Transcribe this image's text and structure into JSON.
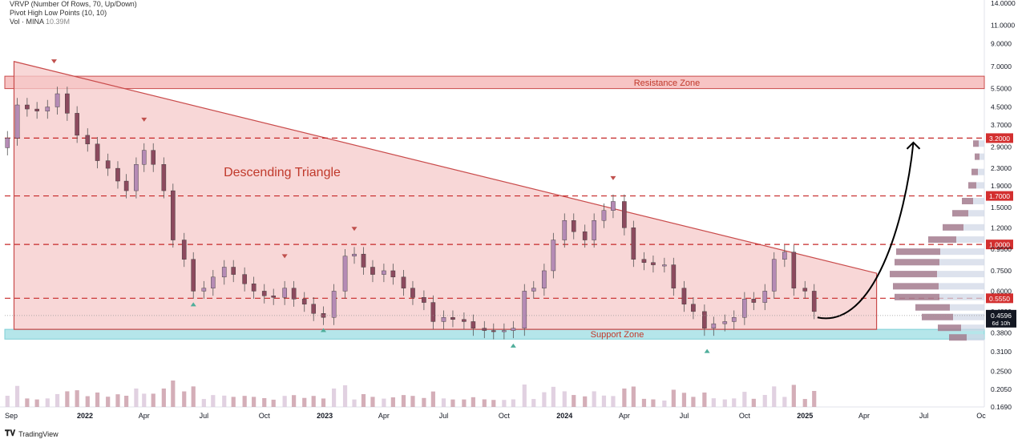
{
  "legend": {
    "line1": "VRVP (Number Of Rows, 70, Up/Down)",
    "line2": "Pivot High Low Points (10, 10)",
    "line3_label": "Vol · MINA",
    "line3_value": "10.39M"
  },
  "footer": {
    "brand": "TradingView"
  },
  "colors": {
    "up": "#b58bb5",
    "down": "#8c4a5e",
    "triangle_fill": "#f6c9c9",
    "triangle_stroke": "#c94b4b",
    "resistance_fill": "#f7c4c4",
    "support_fill": "#b5e6ea",
    "dashed": "#c62828",
    "label_bg": "#d32f2f",
    "price_bg": "#131722",
    "pivot_down": "#c0504d",
    "pivot_up": "#4fae9b"
  },
  "chart_data": {
    "type": "candlestick",
    "title": "",
    "annotations": {
      "pattern_label": "Descending Triangle",
      "resistance_label": "Resistance Zone",
      "support_label": "Support Zone",
      "current_price": "0.4596",
      "countdown": "6d 10h"
    },
    "price_axis_ticks": [
      "14.0000",
      "11.0000",
      "9.0000",
      "7.0000",
      "5.5000",
      "4.5000",
      "3.7000",
      "2.9000",
      "2.3000",
      "1.9000",
      "1.5000",
      "1.2000",
      "0.9500",
      "0.7500",
      "0.6000",
      "0.4800",
      "0.3800",
      "0.3100",
      "0.2500",
      "0.2050",
      "0.1690"
    ],
    "time_axis_ticks": [
      "Sep",
      "2022",
      "Apr",
      "Jul",
      "Oct",
      "2023",
      "Apr",
      "Jul",
      "Oct",
      "2024",
      "Apr",
      "Jul",
      "Oct",
      "2025",
      "Apr",
      "Jul",
      "Oc"
    ],
    "levels": [
      {
        "label": "3.2000",
        "price": 3.2
      },
      {
        "label": "1.7000",
        "price": 1.7
      },
      {
        "label": "1.0000",
        "price": 1.0
      },
      {
        "label": "0.5550",
        "price": 0.555
      }
    ],
    "resistance_zone": {
      "low": 5.5,
      "high": 6.3
    },
    "support_zone": {
      "low": 0.355,
      "high": 0.395
    },
    "triangle": {
      "start": {
        "date": "2021-09-15",
        "price": 7.4
      },
      "end": {
        "date": "2025-04-20",
        "price": 0.73
      },
      "base": 0.395
    },
    "projection": {
      "from": {
        "date": "2025-01-20",
        "price": 0.45
      },
      "to": {
        "date": "2025-06-15",
        "price": 3.05
      }
    },
    "pivots": [
      {
        "date": "2021-11-15",
        "price": 7.0,
        "kind": "high"
      },
      {
        "date": "2022-04-01",
        "price": 3.7,
        "kind": "high"
      },
      {
        "date": "2022-06-15",
        "price": 0.55,
        "kind": "low"
      },
      {
        "date": "2022-11-01",
        "price": 0.83,
        "kind": "high"
      },
      {
        "date": "2022-12-30",
        "price": 0.415,
        "kind": "low"
      },
      {
        "date": "2023-02-15",
        "price": 1.12,
        "kind": "high"
      },
      {
        "date": "2023-10-15",
        "price": 0.35,
        "kind": "low"
      },
      {
        "date": "2024-03-15",
        "price": 1.95,
        "kind": "high"
      },
      {
        "date": "2024-08-05",
        "price": 0.33,
        "kind": "low"
      }
    ],
    "series": [
      {
        "name": "",
        "points": [
          [
            "2021-09-05",
            3.2
          ],
          [
            "2021-09-20",
            4.6
          ],
          [
            "2021-10-05",
            4.4
          ],
          [
            "2021-10-20",
            4.3
          ],
          [
            "2021-11-05",
            4.5
          ],
          [
            "2021-11-20",
            5.2
          ],
          [
            "2021-12-05",
            4.2
          ],
          [
            "2021-12-20",
            3.3
          ],
          [
            "2022-01-05",
            3.0
          ],
          [
            "2022-01-20",
            2.5
          ],
          [
            "2022-02-05",
            2.3
          ],
          [
            "2022-02-20",
            2.0
          ],
          [
            "2022-03-05",
            1.8
          ],
          [
            "2022-03-20",
            2.4
          ],
          [
            "2022-04-01",
            2.8
          ],
          [
            "2022-04-15",
            2.4
          ],
          [
            "2022-05-01",
            1.8
          ],
          [
            "2022-05-15",
            1.05
          ],
          [
            "2022-06-01",
            0.85
          ],
          [
            "2022-06-15",
            0.6
          ],
          [
            "2022-07-01",
            0.62
          ],
          [
            "2022-07-15",
            0.7
          ],
          [
            "2022-08-01",
            0.78
          ],
          [
            "2022-08-15",
            0.72
          ],
          [
            "2022-09-01",
            0.65
          ],
          [
            "2022-09-15",
            0.6
          ],
          [
            "2022-10-01",
            0.57
          ],
          [
            "2022-10-15",
            0.56
          ],
          [
            "2022-11-01",
            0.62
          ],
          [
            "2022-11-15",
            0.55
          ],
          [
            "2022-12-01",
            0.52
          ],
          [
            "2022-12-15",
            0.47
          ],
          [
            "2022-12-30",
            0.45
          ],
          [
            "2023-01-15",
            0.6
          ],
          [
            "2023-02-01",
            0.88
          ],
          [
            "2023-02-15",
            0.9
          ],
          [
            "2023-03-01",
            0.78
          ],
          [
            "2023-03-15",
            0.72
          ],
          [
            "2023-04-01",
            0.75
          ],
          [
            "2023-04-15",
            0.7
          ],
          [
            "2023-05-01",
            0.62
          ],
          [
            "2023-05-15",
            0.56
          ],
          [
            "2023-06-01",
            0.53
          ],
          [
            "2023-06-15",
            0.43
          ],
          [
            "2023-07-01",
            0.45
          ],
          [
            "2023-07-15",
            0.44
          ],
          [
            "2023-08-01",
            0.43
          ],
          [
            "2023-08-15",
            0.4
          ],
          [
            "2023-09-01",
            0.39
          ],
          [
            "2023-09-15",
            0.385
          ],
          [
            "2023-10-01",
            0.39
          ],
          [
            "2023-10-15",
            0.4
          ],
          [
            "2023-11-01",
            0.6
          ],
          [
            "2023-11-15",
            0.62
          ],
          [
            "2023-12-01",
            0.75
          ],
          [
            "2023-12-15",
            1.05
          ],
          [
            "2024-01-01",
            1.3
          ],
          [
            "2024-01-15",
            1.15
          ],
          [
            "2024-02-01",
            1.05
          ],
          [
            "2024-02-15",
            1.3
          ],
          [
            "2024-03-01",
            1.45
          ],
          [
            "2024-03-15",
            1.6
          ],
          [
            "2024-04-01",
            1.2
          ],
          [
            "2024-04-15",
            0.85
          ],
          [
            "2024-05-01",
            0.82
          ],
          [
            "2024-05-15",
            0.8
          ],
          [
            "2024-06-01",
            0.8
          ],
          [
            "2024-06-15",
            0.62
          ],
          [
            "2024-07-01",
            0.52
          ],
          [
            "2024-07-15",
            0.48
          ],
          [
            "2024-08-01",
            0.4
          ],
          [
            "2024-08-15",
            0.42
          ],
          [
            "2024-09-01",
            0.43
          ],
          [
            "2024-09-15",
            0.45
          ],
          [
            "2024-10-01",
            0.55
          ],
          [
            "2024-10-15",
            0.53
          ],
          [
            "2024-11-01",
            0.6
          ],
          [
            "2024-11-15",
            0.85
          ],
          [
            "2024-12-01",
            0.92
          ],
          [
            "2024-12-15",
            0.62
          ],
          [
            "2025-01-01",
            0.6
          ],
          [
            "2025-01-15",
            0.48
          ]
        ]
      }
    ]
  }
}
